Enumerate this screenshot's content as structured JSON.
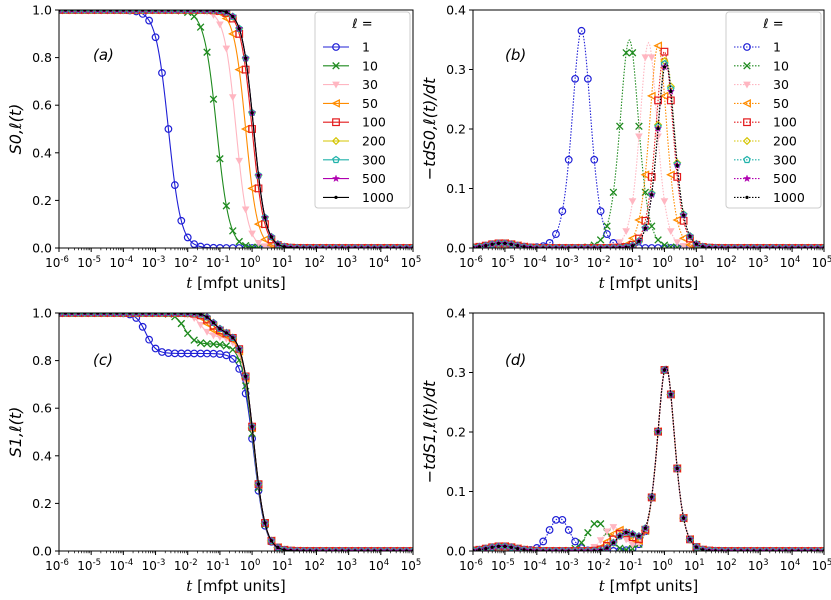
{
  "figure": {
    "series_styles": [
      {
        "label": "1",
        "color": "#1f1fd6",
        "marker": "circle-open",
        "line": "solid"
      },
      {
        "label": "10",
        "color": "#1e8a1e",
        "marker": "x",
        "line": "solid"
      },
      {
        "label": "30",
        "color": "#ffb6c1",
        "marker": "triangle-down",
        "line": "solid"
      },
      {
        "label": "50",
        "color": "#ff8c00",
        "marker": "triangle-left",
        "line": "solid"
      },
      {
        "label": "100",
        "color": "#e31a1c",
        "marker": "square-open",
        "line": "solid"
      },
      {
        "label": "200",
        "color": "#d4c400",
        "marker": "diamond-open",
        "line": "solid"
      },
      {
        "label": "300",
        "color": "#20b2aa",
        "marker": "pentagon-open",
        "line": "solid"
      },
      {
        "label": "500",
        "color": "#b000b0",
        "marker": "star",
        "line": "solid"
      },
      {
        "label": "1000",
        "color": "#000000",
        "marker": "dot",
        "line": "solid"
      }
    ],
    "legend_title": "ℓ =",
    "xlabel_italic": "t",
    "xlabel_rest": " [mfpt units]",
    "x_tick_exponents": [
      -6,
      -5,
      -4,
      -3,
      -2,
      -1,
      0,
      1,
      2,
      3,
      4,
      5
    ],
    "x_tick_base": "10"
  },
  "chart_data": [
    {
      "type": "line",
      "panel": "(a)",
      "ylabel": "S0,ℓ(t)",
      "ylim": [
        0,
        1.0
      ],
      "yticks": [
        "0.0",
        "0.2",
        "0.4",
        "0.6",
        "0.8",
        "1.0"
      ],
      "xscale": "log",
      "xlim_exp": [
        -6,
        5
      ],
      "legend": true,
      "legend_position": "top-right",
      "series_kind": "sigmoid",
      "series": [
        {
          "name": "1",
          "t50_exp": -2.6,
          "width": 0.45,
          "plateau": 1.0,
          "dip": 0
        },
        {
          "name": "10",
          "t50_exp": -1.1,
          "width": 0.45,
          "plateau": 1.0,
          "dip": 0
        },
        {
          "name": "30",
          "t50_exp": -0.5,
          "width": 0.42,
          "plateau": 1.0,
          "dip": 0
        },
        {
          "name": "50",
          "t50_exp": -0.2,
          "width": 0.42,
          "plateau": 1.0,
          "dip": 0
        },
        {
          "name": "100",
          "t50_exp": 0.0,
          "width": 0.42,
          "plateau": 1.0,
          "dip": 0
        },
        {
          "name": "200",
          "t50_exp": 0.05,
          "width": 0.42,
          "plateau": 1.0,
          "dip": 0
        },
        {
          "name": "300",
          "t50_exp": 0.05,
          "width": 0.42,
          "plateau": 1.0,
          "dip": 0
        },
        {
          "name": "500",
          "t50_exp": 0.05,
          "width": 0.42,
          "plateau": 1.0,
          "dip": 0
        },
        {
          "name": "1000",
          "t50_exp": 0.05,
          "width": 0.42,
          "plateau": 1.0,
          "dip": 0
        }
      ]
    },
    {
      "type": "line",
      "panel": "(b)",
      "ylabel": "−tdS0,ℓ(t)/dt",
      "ylim": [
        0,
        0.4
      ],
      "yticks": [
        "0.0",
        "0.1",
        "0.2",
        "0.3",
        "0.4"
      ],
      "xscale": "log",
      "xlim_exp": [
        -6,
        5
      ],
      "legend": true,
      "legend_position": "top-right",
      "series_kind": "peak",
      "series": [
        {
          "name": "1",
          "peak_exp": -2.6,
          "peak": 0.365,
          "width": 0.45
        },
        {
          "name": "10",
          "peak_exp": -1.1,
          "peak": 0.35,
          "width": 0.45
        },
        {
          "name": "30",
          "peak_exp": -0.5,
          "peak": 0.345,
          "width": 0.42
        },
        {
          "name": "50",
          "peak_exp": -0.2,
          "peak": 0.34,
          "width": 0.42
        },
        {
          "name": "100",
          "peak_exp": 0.0,
          "peak": 0.33,
          "width": 0.42
        },
        {
          "name": "200",
          "peak_exp": 0.05,
          "peak": 0.32,
          "width": 0.42
        },
        {
          "name": "300",
          "peak_exp": 0.05,
          "peak": 0.315,
          "width": 0.42
        },
        {
          "name": "500",
          "peak_exp": 0.05,
          "peak": 0.31,
          "width": 0.42
        },
        {
          "name": "1000",
          "peak_exp": 0.05,
          "peak": 0.31,
          "width": 0.42
        }
      ]
    },
    {
      "type": "line",
      "panel": "(c)",
      "ylabel": "S1,ℓ(t)",
      "ylim": [
        0,
        1.0
      ],
      "yticks": [
        "0.0",
        "0.2",
        "0.4",
        "0.6",
        "0.8",
        "1.0"
      ],
      "xscale": "log",
      "xlim_exp": [
        -6,
        5
      ],
      "legend": false,
      "series_kind": "sigmoid",
      "series": [
        {
          "name": "1",
          "t50_exp": 0.05,
          "width": 0.42,
          "plateau": 1.0,
          "dip": 0.17,
          "dip_exp": -3.3
        },
        {
          "name": "10",
          "t50_exp": 0.05,
          "width": 0.42,
          "plateau": 1.0,
          "dip": 0.13,
          "dip_exp": -2.1
        },
        {
          "name": "30",
          "t50_exp": 0.05,
          "width": 0.42,
          "plateau": 1.0,
          "dip": 0.1,
          "dip_exp": -1.6
        },
        {
          "name": "50",
          "t50_exp": 0.05,
          "width": 0.42,
          "plateau": 1.0,
          "dip": 0.09,
          "dip_exp": -1.4
        },
        {
          "name": "100",
          "t50_exp": 0.05,
          "width": 0.42,
          "plateau": 1.0,
          "dip": 0.08,
          "dip_exp": -1.3
        },
        {
          "name": "200",
          "t50_exp": 0.05,
          "width": 0.42,
          "plateau": 1.0,
          "dip": 0.08,
          "dip_exp": -1.2
        },
        {
          "name": "300",
          "t50_exp": 0.05,
          "width": 0.42,
          "plateau": 1.0,
          "dip": 0.08,
          "dip_exp": -1.2
        },
        {
          "name": "500",
          "t50_exp": 0.05,
          "width": 0.42,
          "plateau": 1.0,
          "dip": 0.08,
          "dip_exp": -1.2
        },
        {
          "name": "1000",
          "t50_exp": 0.05,
          "width": 0.42,
          "plateau": 1.0,
          "dip": 0.08,
          "dip_exp": -1.2
        }
      ]
    },
    {
      "type": "line",
      "panel": "(d)",
      "ylabel": "−tdS1,ℓ(t)/dt",
      "ylim": [
        0,
        0.4
      ],
      "yticks": [
        "0.0",
        "0.1",
        "0.2",
        "0.3",
        "0.4"
      ],
      "xscale": "log",
      "xlim_exp": [
        -6,
        5
      ],
      "legend": false,
      "series_kind": "peak",
      "series": [
        {
          "name": "1",
          "peak_exp": 0.05,
          "peak": 0.31,
          "width": 0.42,
          "bump": 0.055,
          "bump_exp": -3.3
        },
        {
          "name": "10",
          "peak_exp": 0.05,
          "peak": 0.31,
          "width": 0.42,
          "bump": 0.048,
          "bump_exp": -2.1
        },
        {
          "name": "30",
          "peak_exp": 0.05,
          "peak": 0.31,
          "width": 0.42,
          "bump": 0.04,
          "bump_exp": -1.6
        },
        {
          "name": "50",
          "peak_exp": 0.05,
          "peak": 0.31,
          "width": 0.42,
          "bump": 0.035,
          "bump_exp": -1.4
        },
        {
          "name": "100",
          "peak_exp": 0.05,
          "peak": 0.31,
          "width": 0.42,
          "bump": 0.03,
          "bump_exp": -1.3
        },
        {
          "name": "200",
          "peak_exp": 0.05,
          "peak": 0.31,
          "width": 0.42,
          "bump": 0.03,
          "bump_exp": -1.2
        },
        {
          "name": "300",
          "peak_exp": 0.05,
          "peak": 0.31,
          "width": 0.42,
          "bump": 0.03,
          "bump_exp": -1.2
        },
        {
          "name": "500",
          "peak_exp": 0.05,
          "peak": 0.31,
          "width": 0.42,
          "bump": 0.03,
          "bump_exp": -1.2
        },
        {
          "name": "1000",
          "peak_exp": 0.05,
          "peak": 0.31,
          "width": 0.42,
          "bump": 0.03,
          "bump_exp": -1.2
        }
      ]
    }
  ]
}
